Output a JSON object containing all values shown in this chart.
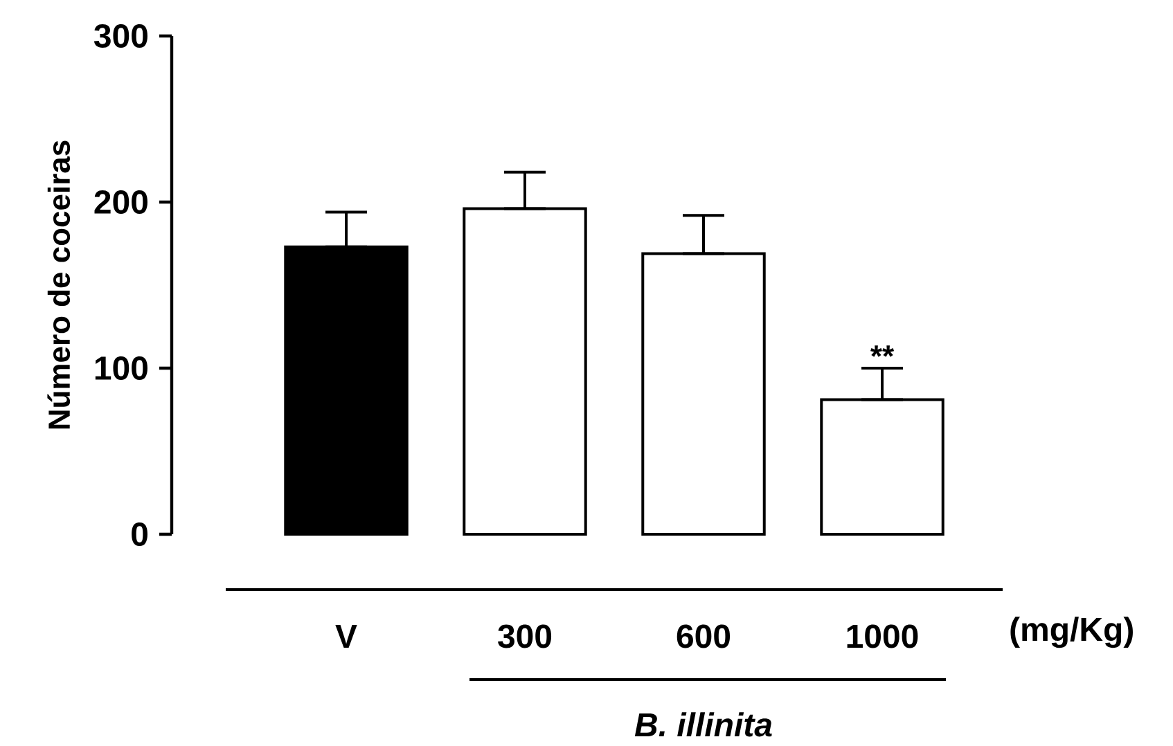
{
  "chart_data": {
    "type": "bar",
    "ylabel": "Número de coceiras",
    "xlabel": "(mg/Kg)",
    "categories": [
      "V",
      "300",
      "600",
      "1000"
    ],
    "values": [
      173,
      196,
      169,
      81
    ],
    "colors": [
      "#000000",
      "#ffffff",
      "#ffffff",
      "#ffffff"
    ],
    "errors": [
      [
        173,
        194
      ],
      [
        196,
        218
      ],
      [
        169,
        192
      ],
      [
        81,
        100
      ]
    ],
    "ylim": [
      0,
      300
    ],
    "yticks": [
      0,
      100,
      200,
      300
    ],
    "annotations": [
      {
        "text": "**",
        "x": "1000",
        "y": 100
      },
      "*B. illinita*"
    ]
  }
}
